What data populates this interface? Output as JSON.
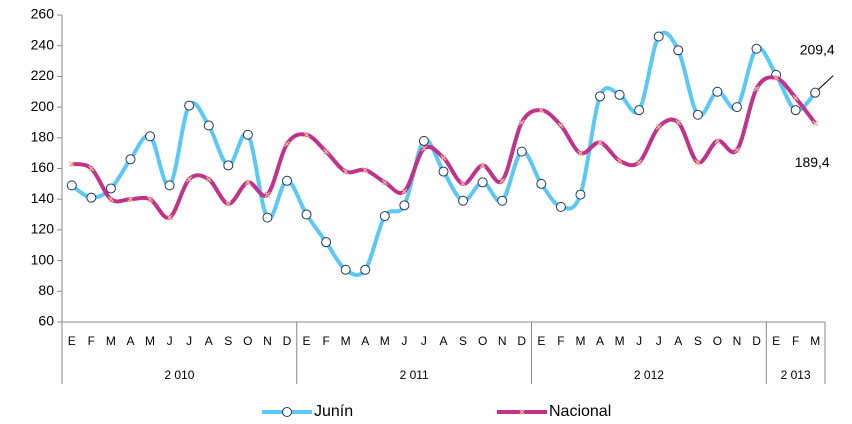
{
  "chart_data": {
    "type": "line",
    "categories": [
      "E",
      "F",
      "M",
      "A",
      "M",
      "J",
      "J",
      "A",
      "S",
      "O",
      "N",
      "D",
      "E",
      "F",
      "M",
      "A",
      "M",
      "J",
      "J",
      "A",
      "S",
      "O",
      "N",
      "D",
      "E",
      "F",
      "M",
      "A",
      "M",
      "J",
      "J",
      "A",
      "S",
      "O",
      "N",
      "D",
      "E",
      "F",
      "M"
    ],
    "year_groups": [
      {
        "label": "2 010",
        "count": 12
      },
      {
        "label": "2 011",
        "count": 12
      },
      {
        "label": "2 012",
        "count": 12
      },
      {
        "label": "2 013",
        "count": 3
      }
    ],
    "series": [
      {
        "name": "Junín",
        "color": "#5bc8f5",
        "values": [
          149,
          141,
          147,
          166,
          181,
          149,
          201,
          188,
          162,
          182,
          128,
          152,
          130,
          112,
          94,
          94,
          129,
          136,
          178,
          158,
          139,
          151,
          139,
          171,
          150,
          135,
          143,
          207,
          208,
          198,
          246,
          237,
          195,
          210,
          200,
          238,
          221,
          198,
          209.4
        ],
        "value_labels": [
          null,
          null,
          null,
          null,
          null,
          null,
          null,
          null,
          null,
          null,
          null,
          null,
          null,
          null,
          null,
          null,
          null,
          null,
          null,
          null,
          null,
          null,
          null,
          null,
          null,
          null,
          null,
          null,
          null,
          null,
          null,
          null,
          null,
          null,
          null,
          null,
          null,
          null,
          "209,4"
        ]
      },
      {
        "name": "Nacional",
        "color": "#c0338a",
        "values": [
          163,
          160,
          140,
          140,
          140,
          128,
          153,
          153,
          137,
          151,
          143,
          176,
          182,
          171,
          158,
          159,
          151,
          145,
          173,
          167,
          150,
          162,
          152,
          190,
          198,
          188,
          170,
          177,
          165,
          164,
          187,
          190,
          164,
          178,
          172,
          212,
          219,
          206,
          189.4
        ],
        "value_labels": [
          null,
          null,
          null,
          null,
          null,
          null,
          null,
          null,
          null,
          null,
          null,
          null,
          null,
          null,
          null,
          null,
          null,
          null,
          null,
          null,
          null,
          null,
          null,
          null,
          null,
          null,
          null,
          null,
          null,
          null,
          null,
          null,
          null,
          null,
          null,
          null,
          null,
          null,
          "189,4"
        ]
      }
    ],
    "ylim": [
      60,
      260
    ],
    "yticks": [
      60,
      80,
      100,
      120,
      140,
      160,
      180,
      200,
      220,
      240,
      260
    ],
    "grid": false
  }
}
